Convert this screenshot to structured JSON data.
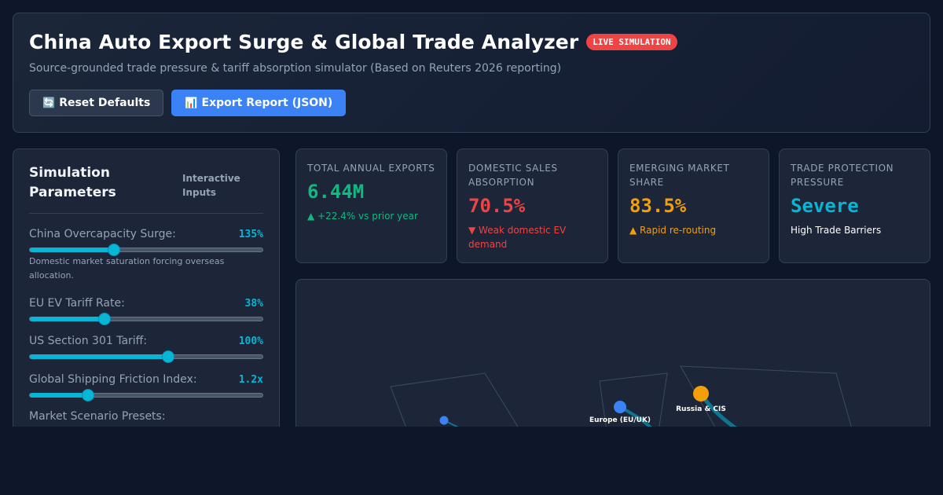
{
  "header": {
    "title": "China Auto Export Surge & Global Trade Analyzer",
    "badge": "LIVE SIMULATION",
    "subtitle": "Source-grounded trade pressure & tariff absorption simulator (Based on Reuters 2026 reporting)",
    "reset_icon": "🔄",
    "reset_label": "Reset Defaults",
    "export_icon": "📊",
    "export_label": "Export Report (JSON)"
  },
  "params": {
    "title": "Simulation Parameters",
    "tag": "Interactive Inputs",
    "items": [
      {
        "label": "China Overcapacity Surge:",
        "value": "135%",
        "fraction": 0.36,
        "note": "Domestic market saturation forcing overseas allocation."
      },
      {
        "label": "EU EV Tariff Rate:",
        "value": "38%",
        "fraction": 0.32,
        "note": ""
      },
      {
        "label": "US Section 301 Tariff:",
        "value": "100%",
        "fraction": 0.595,
        "note": ""
      },
      {
        "label": "Global Shipping Friction Index:",
        "value": "1.2x",
        "fraction": 0.25,
        "note": ""
      }
    ],
    "presets_label": "Market Scenario Presets:"
  },
  "kpis": [
    {
      "label": "Total Annual Exports",
      "value": "6.44M",
      "sub": "▲ +22.4% vs prior year",
      "color": "#10b981",
      "sub_color": "#10b981"
    },
    {
      "label": "Domestic Sales Absorption",
      "value": "70.5%",
      "sub": "▼ Weak domestic EV demand",
      "color": "#ef4444",
      "sub_color": "#ef4444"
    },
    {
      "label": "Emerging Market Share",
      "value": "83.5%",
      "sub": "▲ Rapid re-routing",
      "color": "#f59e0b",
      "sub_color": "#f59e0b"
    },
    {
      "label": "Trade Protection Pressure",
      "value": "Severe",
      "sub": "High Trade Barriers",
      "color": "#06b6d4",
      "sub_color": "#ffffff"
    }
  ],
  "map": {
    "regions": [
      {
        "name": "Europe (EU/UK)",
        "color": "#3b82f6"
      },
      {
        "name": "Russia & CIS",
        "color": "#f59e0b"
      },
      {
        "name": "",
        "color": "#3b82f6"
      }
    ],
    "route_color": "#0e7490"
  }
}
